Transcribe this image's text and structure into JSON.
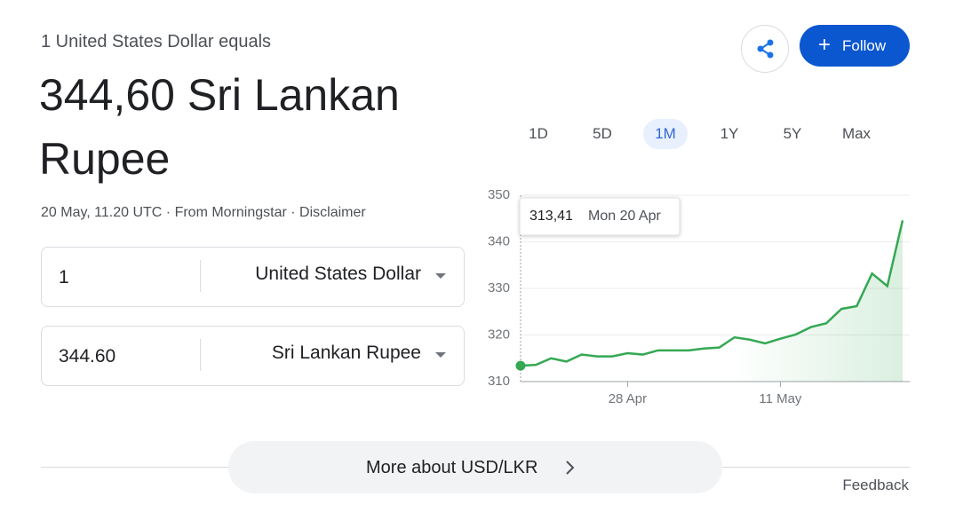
{
  "header": {
    "intro": "1 United States Dollar equals",
    "result": "344,60 Sri Lankan Rupee",
    "timestamp": "20 May, 11.20 UTC",
    "source": "From Morningstar",
    "disclaimer": "Disclaimer"
  },
  "actions": {
    "follow": "Follow"
  },
  "converter": {
    "rows": [
      {
        "amount": "1",
        "currency": "United States Dollar"
      },
      {
        "amount": "344.60",
        "currency": "Sri Lankan Rupee"
      }
    ]
  },
  "ranges": [
    "1D",
    "5D",
    "1M",
    "1Y",
    "5Y",
    "Max"
  ],
  "chart_data": {
    "type": "line",
    "color": "#34a853",
    "categories": [
      "Mon 20 Apr",
      null,
      null,
      null,
      null,
      null,
      null,
      "28 Apr",
      null,
      null,
      null,
      null,
      null,
      null,
      null,
      null,
      null,
      "11 May",
      null,
      null,
      null,
      null,
      null,
      null,
      null,
      null
    ],
    "values": [
      313.41,
      313.6,
      315.0,
      314.3,
      315.8,
      315.4,
      315.4,
      316.1,
      315.8,
      316.7,
      316.7,
      316.7,
      317.1,
      317.3,
      319.5,
      319.0,
      318.2,
      319.2,
      320.1,
      321.7,
      322.5,
      325.6,
      326.2,
      333.2,
      330.5,
      344.6
    ],
    "ylim": [
      310,
      350
    ],
    "yticks": [
      310,
      320,
      330,
      340,
      350
    ],
    "grid": true,
    "tooltip": {
      "label": "313,41",
      "date": "Mon 20 Apr"
    }
  },
  "footer": {
    "more": "More about USD/LKR",
    "feedback": "Feedback"
  }
}
